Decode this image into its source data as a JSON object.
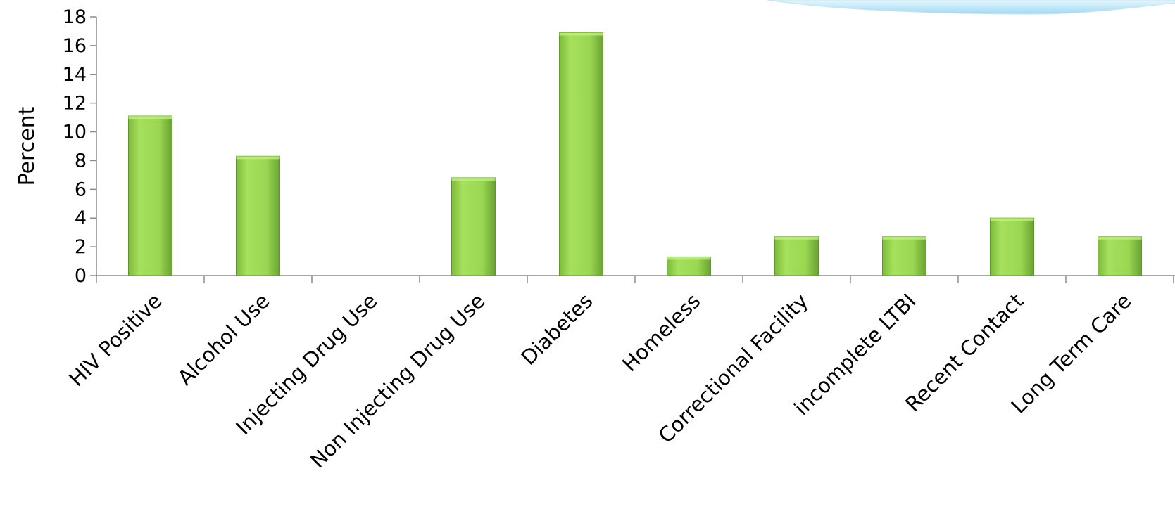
{
  "chart_data": {
    "type": "bar",
    "ylabel": "Percent",
    "ylim": [
      0,
      18
    ],
    "yticks": [
      0,
      2,
      4,
      6,
      8,
      10,
      12,
      14,
      16,
      18
    ],
    "categories": [
      "HIV Positive",
      "Alcohol Use",
      "Injecting Drug Use",
      "Non Injecting Drug Use",
      "Diabetes",
      "Homeless",
      "Correctional Facility",
      "incomplete LTBI",
      "Recent Contact",
      "Long Term Care"
    ],
    "values": [
      11.1,
      8.3,
      0,
      6.8,
      16.9,
      1.3,
      2.7,
      2.7,
      4.0,
      2.7
    ],
    "grid": false,
    "legend": "none",
    "colors": {
      "bar_light": "#a6e05c",
      "bar_mid": "#8fd14a",
      "bar_dark": "#6aa232",
      "axis": "#8c8c8c",
      "decor_light": "#e6f6fd",
      "decor_dark": "#9fdaf3"
    }
  }
}
